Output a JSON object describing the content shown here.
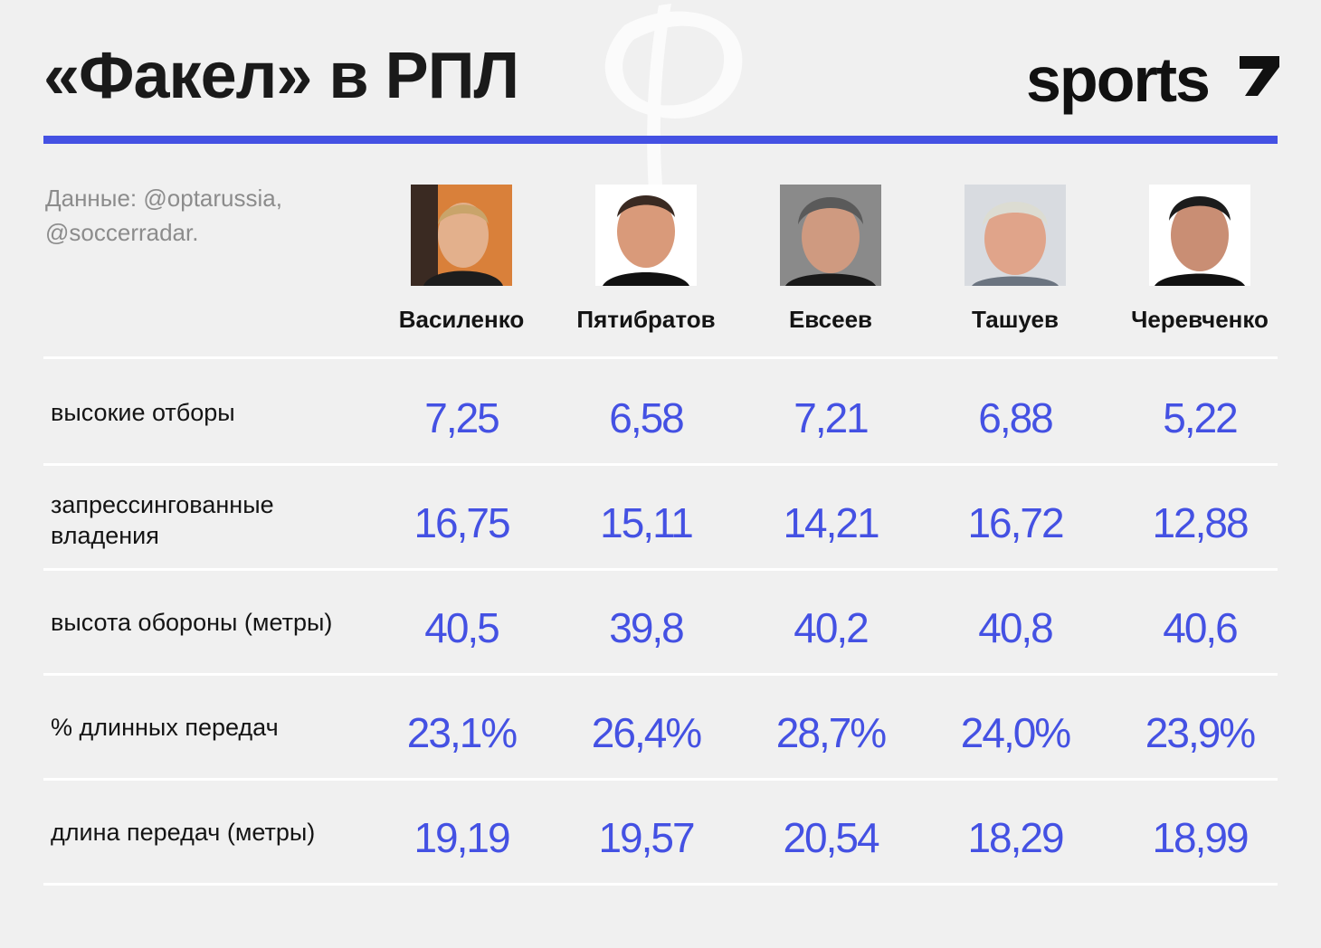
{
  "header": {
    "title": "«Факел» в РПЛ",
    "brand": "sports"
  },
  "source_note": [
    "Данные: @optarussia,",
    "@soccerradar."
  ],
  "colors": {
    "accent": "#4451e3",
    "background": "#f0f0f0",
    "text": "#141414",
    "muted": "#8c8c8c"
  },
  "chart_data": {
    "type": "table",
    "columns": [
      "Василенко",
      "Пятибратов",
      "Евсеев",
      "Ташуев",
      "Черевченко"
    ],
    "rows": [
      {
        "label": "высокие отборы",
        "values": [
          "7,25",
          "6,58",
          "7,21",
          "6,88",
          "5,22"
        ]
      },
      {
        "label": "запрессингованные владения",
        "values": [
          "16,75",
          "15,11",
          "14,21",
          "16,72",
          "12,88"
        ]
      },
      {
        "label": "высота обороны (метры)",
        "values": [
          "40,5",
          "39,8",
          "40,2",
          "40,8",
          "40,6"
        ]
      },
      {
        "label": "% длинных передач",
        "values": [
          "23,1%",
          "26,4%",
          "28,7%",
          "24,0%",
          "23,9%"
        ]
      },
      {
        "label": "длина передач (метры)",
        "values": [
          "19,19",
          "19,57",
          "20,54",
          "18,29",
          "18,99"
        ]
      }
    ]
  }
}
